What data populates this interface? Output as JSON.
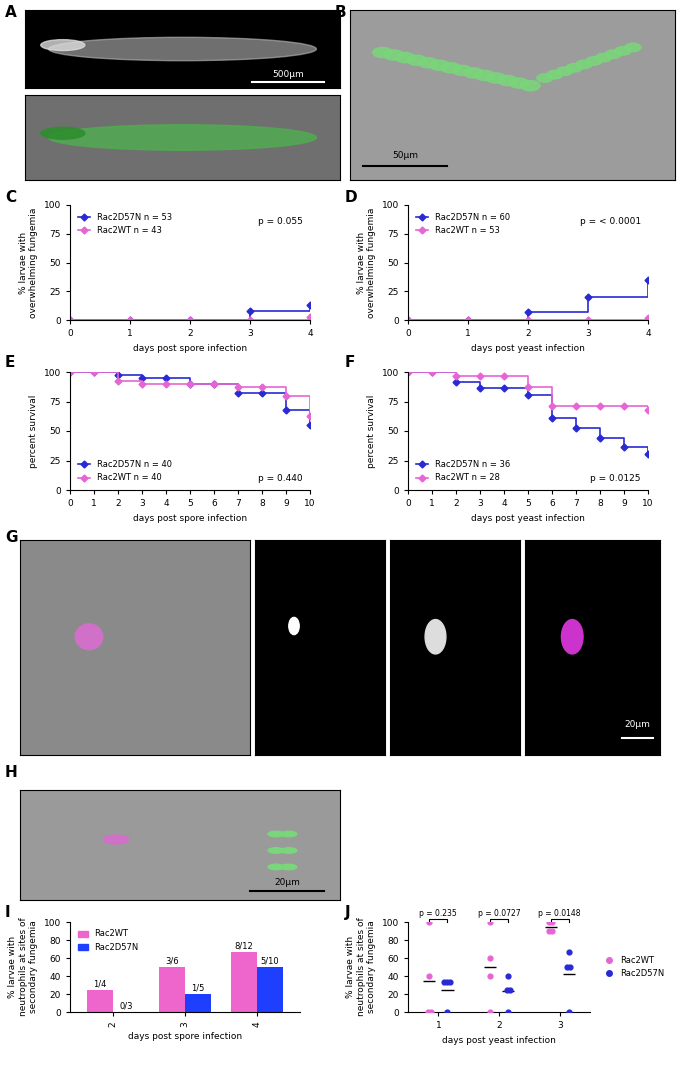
{
  "images": [
    {
      "panel": "A",
      "scale_bar": "500µm"
    },
    {
      "panel": "B",
      "scale_bar": "50µm"
    },
    {
      "panel": "G",
      "scale_bar": "20µm"
    },
    {
      "panel": "H",
      "scale_bar": "20µm"
    }
  ],
  "chart_data": [
    {
      "panel": "C",
      "type": "line",
      "line_style": "step",
      "xlabel": "days post spore infection",
      "ylabel": "% larvae with overwhelming fungemia",
      "x": [
        0,
        1,
        2,
        3,
        4
      ],
      "series": [
        {
          "name": "Rac2D57N n = 53",
          "color": "#2a2ad4",
          "marker": "diamond",
          "values": [
            0,
            0,
            0,
            7.5,
            13.2
          ]
        },
        {
          "name": "Rac2WT n = 43",
          "color": "#e566d3",
          "marker": "diamond",
          "values": [
            0,
            0,
            0,
            0,
            2.3
          ]
        }
      ],
      "xlim": [
        0,
        4
      ],
      "xticks": [
        0,
        1,
        2,
        3,
        4
      ],
      "ylim": [
        0,
        100
      ],
      "yticks": [
        0,
        25,
        50,
        75,
        100
      ],
      "legend": "upper left",
      "annotation": "p = 0.055"
    },
    {
      "panel": "D",
      "type": "line",
      "line_style": "step",
      "xlabel": "days post yeast infection",
      "ylabel": "% larvae with overwhelming fungemia",
      "x": [
        0,
        1,
        2,
        3,
        4
      ],
      "series": [
        {
          "name": "Rac2D57N n = 60",
          "color": "#2a2ad4",
          "marker": "diamond",
          "values": [
            0,
            0,
            6.7,
            20,
            35
          ]
        },
        {
          "name": "Rac2WT n = 53",
          "color": "#e566d3",
          "marker": "diamond",
          "values": [
            0,
            0,
            0,
            0,
            1.9
          ]
        }
      ],
      "xlim": [
        0,
        4
      ],
      "xticks": [
        0,
        1,
        2,
        3,
        4
      ],
      "ylim": [
        0,
        100
      ],
      "yticks": [
        0,
        25,
        50,
        75,
        100
      ],
      "legend": "upper left",
      "annotation": "p = < 0.0001"
    },
    {
      "panel": "E",
      "type": "line",
      "line_style": "step",
      "xlabel": "days post spore infection",
      "ylabel": "percent survival",
      "x": [
        0,
        1,
        2,
        3,
        4,
        5,
        6,
        7,
        8,
        9,
        10
      ],
      "series": [
        {
          "name": "Rac2D57N n = 40",
          "color": "#2a2ad4",
          "marker": "diamond",
          "values": [
            100,
            100,
            97.5,
            95,
            95,
            90,
            90,
            82.5,
            82.5,
            67.5,
            55
          ]
        },
        {
          "name": "Rac2WT n = 40",
          "color": "#e566d3",
          "marker": "diamond",
          "values": [
            100,
            100,
            92.5,
            90,
            90,
            90,
            90,
            87.5,
            87.5,
            80,
            62.5
          ]
        }
      ],
      "xlim": [
        0,
        10
      ],
      "xticks": [
        0,
        1,
        2,
        3,
        4,
        5,
        6,
        7,
        8,
        9,
        10
      ],
      "ylim": [
        0,
        100
      ],
      "yticks": [
        0,
        25,
        50,
        75,
        100
      ],
      "legend": "lower left",
      "annotation": "p = 0.440"
    },
    {
      "panel": "F",
      "type": "line",
      "line_style": "step",
      "xlabel": "days post yeast infection",
      "ylabel": "percent survival",
      "x": [
        0,
        1,
        2,
        3,
        4,
        5,
        6,
        7,
        8,
        9,
        10
      ],
      "series": [
        {
          "name": "Rac2D57N n = 36",
          "color": "#2a2ad4",
          "marker": "diamond",
          "values": [
            100,
            100,
            91.7,
            86.1,
            86.1,
            80.6,
            61.1,
            52.8,
            44.4,
            36.1,
            30.6
          ]
        },
        {
          "name": "Rac2WT n = 28",
          "color": "#e566d3",
          "marker": "diamond",
          "values": [
            100,
            100,
            96.4,
            96.4,
            96.4,
            87.5,
            71.4,
            71.4,
            71.4,
            71.4,
            67.9
          ]
        }
      ],
      "xlim": [
        0,
        10
      ],
      "xticks": [
        0,
        1,
        2,
        3,
        4,
        5,
        6,
        7,
        8,
        9,
        10
      ],
      "ylim": [
        0,
        100
      ],
      "yticks": [
        0,
        25,
        50,
        75,
        100
      ],
      "legend": "lower left",
      "annotation": "p = 0.0125"
    },
    {
      "panel": "I",
      "type": "bar",
      "xlabel": "days post spore infection",
      "ylabel": "% larvae with neutrophils at sites of secondary fungemia",
      "categories": [
        "2",
        "3",
        "4"
      ],
      "series": [
        {
          "name": "Rac2WT",
          "color": "#ee66cc",
          "values": [
            25,
            50,
            66.7
          ],
          "fractions": [
            "1/4",
            "3/6",
            "8/12"
          ]
        },
        {
          "name": "Rac2D57N",
          "color": "#1f3fff",
          "values": [
            0,
            20,
            50
          ],
          "fractions": [
            "0/3",
            "1/5",
            "5/10"
          ]
        }
      ],
      "ylim": [
        0,
        100
      ],
      "yticks": [
        0,
        20,
        40,
        60,
        80,
        100
      ],
      "legend": "upper left"
    },
    {
      "panel": "J",
      "type": "scatter",
      "xlabel": "days post yeast infection",
      "ylabel": "% larvae with neutrophils at sites of secondary fungemia",
      "categories": [
        "1",
        "2",
        "3"
      ],
      "series": [
        {
          "name": "Rac2WT",
          "color": "#e566d3",
          "marker": "circle",
          "values": [
            [
              100,
              40,
              0,
              0
            ],
            [
              100,
              60,
              40,
              0
            ],
            [
              100,
              100,
              90,
              90
            ]
          ],
          "means": [
            35,
            50,
            95
          ]
        },
        {
          "name": "Rac2D57N",
          "color": "#2a2ad4",
          "marker": "circle",
          "values": [
            [
              33,
              33,
              33,
              0
            ],
            [
              40,
              25,
              25,
              0
            ],
            [
              67,
              50,
              50,
              0
            ]
          ],
          "means": [
            25,
            23,
            42
          ]
        }
      ],
      "p_values": [
        "p = 0.235",
        "p = 0.0727",
        "p = 0.0148"
      ],
      "ylim": [
        0,
        100
      ],
      "yticks": [
        0,
        20,
        40,
        60,
        80,
        100
      ],
      "legend": "right"
    }
  ]
}
